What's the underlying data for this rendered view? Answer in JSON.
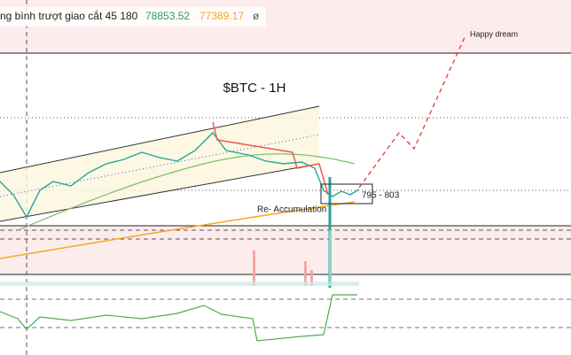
{
  "header": {
    "indicator": "ng bình trượt giao cắt 45 180",
    "value1": "78853.52",
    "value2": "77389.17",
    "symbol": "ø"
  },
  "annotations": {
    "title": "$BTC - 1H",
    "target": "Happy dream",
    "range": "795 - 803",
    "phase": "Re- Accumulation"
  }
}
